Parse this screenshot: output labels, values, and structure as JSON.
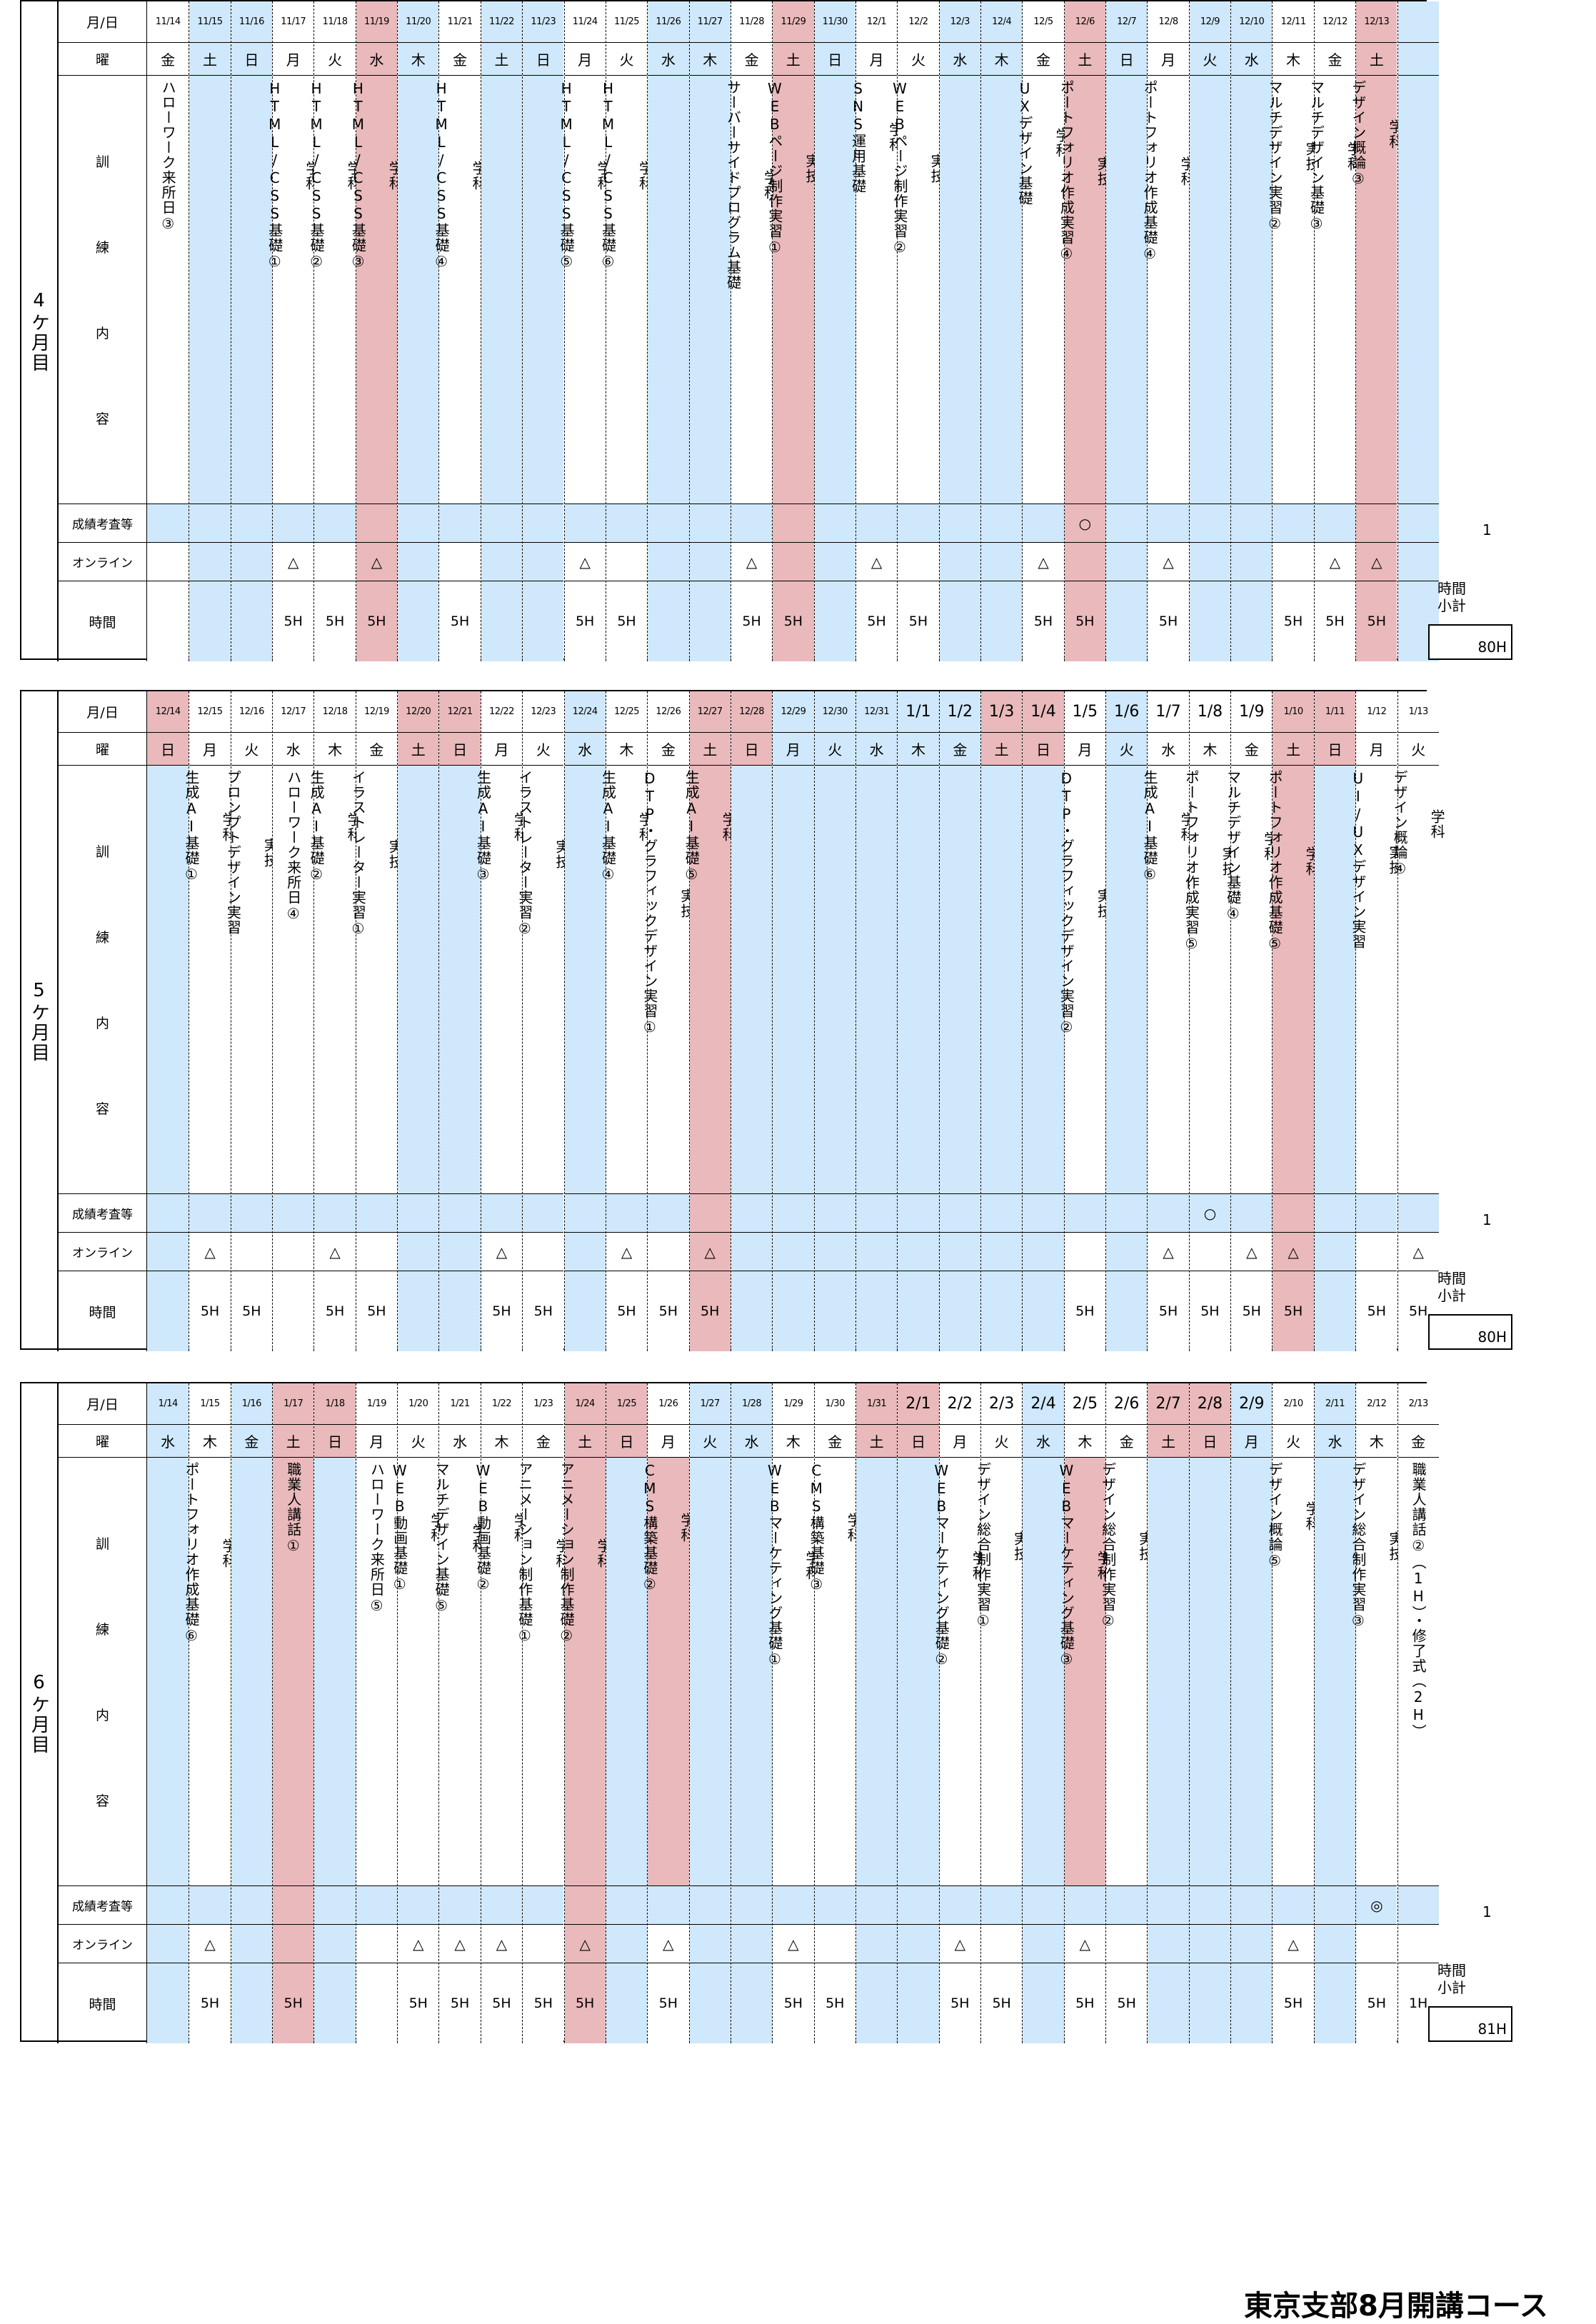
{
  "headers": {
    "date": "月/日",
    "weekday": "曜",
    "training": [
      "訓",
      "練",
      "内",
      "容"
    ],
    "exam": "成績考査等",
    "online": "オンライン",
    "time": "時間",
    "subtotal": "時間\n小計"
  },
  "footer": "東京支部8月開講コース",
  "months": [
    {
      "label": "4ケ月目",
      "note": "1",
      "subtotal": "80H",
      "days": [
        {
          "d": "11/14",
          "w": "金",
          "c": "ハローワーク来所日③",
          "e": "",
          "o": "",
          "h": "",
          "bg": "white"
        },
        {
          "d": "11/15",
          "w": "土",
          "c": "",
          "e": "",
          "o": "",
          "h": "",
          "bg": "blue"
        },
        {
          "d": "11/16",
          "w": "日",
          "c": "",
          "e": "",
          "o": "",
          "h": "",
          "bg": "blue"
        },
        {
          "d": "11/17",
          "w": "月",
          "c": "学科\n\nHTML/CSS基礎①",
          "e": "",
          "o": "△",
          "h": "5H",
          "bg": "white"
        },
        {
          "d": "11/18",
          "w": "火",
          "c": "学科\n\nHTML/CSS基礎②",
          "e": "",
          "o": "",
          "h": "5H",
          "bg": "white"
        },
        {
          "d": "11/19",
          "w": "水",
          "c": "学科\n\nHTML/CSS基礎③",
          "e": "",
          "o": "△",
          "h": "5H",
          "bg": "pink"
        },
        {
          "d": "11/20",
          "w": "木",
          "c": "",
          "e": "",
          "o": "",
          "h": "",
          "bg": "blue"
        },
        {
          "d": "11/21",
          "w": "金",
          "c": "学科\n\nHTML/CSS基礎④",
          "e": "",
          "o": "",
          "h": "5H",
          "bg": "white"
        },
        {
          "d": "11/22",
          "w": "土",
          "c": "",
          "e": "",
          "o": "",
          "h": "",
          "bg": "blue"
        },
        {
          "d": "11/23",
          "w": "日",
          "c": "",
          "e": "",
          "o": "",
          "h": "",
          "bg": "blue"
        },
        {
          "d": "11/24",
          "w": "月",
          "c": "学科\n\nHTML/CSS基礎⑤",
          "e": "",
          "o": "△",
          "h": "5H",
          "bg": "white"
        },
        {
          "d": "11/25",
          "w": "火",
          "c": "学科\n\nHTML/CSS基礎⑥",
          "e": "",
          "o": "",
          "h": "5H",
          "bg": "white"
        },
        {
          "d": "11/26",
          "w": "水",
          "c": "",
          "e": "",
          "o": "",
          "h": "",
          "bg": "blue"
        },
        {
          "d": "11/27",
          "w": "木",
          "c": "",
          "e": "",
          "o": "",
          "h": "",
          "bg": "blue"
        },
        {
          "d": "11/28",
          "w": "金",
          "c": "学科\n\nサーバーサイドプログラム基礎",
          "e": "",
          "o": "△",
          "h": "5H",
          "bg": "white"
        },
        {
          "d": "11/29",
          "w": "土",
          "c": "実技\n\nWEBページ制作実習①",
          "e": "",
          "o": "",
          "h": "5H",
          "bg": "pink"
        },
        {
          "d": "11/30",
          "w": "日",
          "c": "",
          "e": "",
          "o": "",
          "h": "",
          "bg": "blue"
        },
        {
          "d": "12/1",
          "w": "月",
          "c": "学科\n\nSNS運用基礎",
          "e": "",
          "o": "△",
          "h": "5H",
          "bg": "white"
        },
        {
          "d": "12/2",
          "w": "火",
          "c": "実技\n\nWEBページ制作実習②",
          "e": "",
          "o": "",
          "h": "5H",
          "bg": "white"
        },
        {
          "d": "12/3",
          "w": "水",
          "c": "",
          "e": "",
          "o": "",
          "h": "",
          "bg": "blue"
        },
        {
          "d": "12/4",
          "w": "木",
          "c": "",
          "e": "",
          "o": "",
          "h": "",
          "bg": "blue"
        },
        {
          "d": "12/5",
          "w": "金",
          "c": "学科\n\nUXデザイン基礎",
          "e": "",
          "o": "△",
          "h": "5H",
          "bg": "white"
        },
        {
          "d": "12/6",
          "w": "土",
          "c": "実技\n\nポートフォリオ作成実習④",
          "e": "○",
          "o": "",
          "h": "5H",
          "bg": "pink"
        },
        {
          "d": "12/7",
          "w": "日",
          "c": "",
          "e": "",
          "o": "",
          "h": "",
          "bg": "blue"
        },
        {
          "d": "12/8",
          "w": "月",
          "c": "学科\n\nポートフォリオ作成基礎④",
          "e": "",
          "o": "△",
          "h": "5H",
          "bg": "white"
        },
        {
          "d": "12/9",
          "w": "火",
          "c": "",
          "e": "",
          "o": "",
          "h": "",
          "bg": "blue"
        },
        {
          "d": "12/10",
          "w": "水",
          "c": "",
          "e": "",
          "o": "",
          "h": "",
          "bg": "blue"
        },
        {
          "d": "12/11",
          "w": "木",
          "c": "実技\n\nマルチデザイン実習②",
          "e": "",
          "o": "",
          "h": "5H",
          "bg": "white"
        },
        {
          "d": "12/12",
          "w": "金",
          "c": "学科\n\nマルチデザイン基礎③",
          "e": "",
          "o": "△",
          "h": "5H",
          "bg": "white"
        },
        {
          "d": "12/13",
          "w": "土",
          "c": "学科\n\nデザイン概論③",
          "e": "",
          "o": "△",
          "h": "5H",
          "bg": "pink"
        },
        {
          "d": "",
          "w": "",
          "c": "",
          "e": "",
          "o": "",
          "h": "",
          "bg": "blue"
        }
      ]
    },
    {
      "label": "5ケ月目",
      "note": "1",
      "subtotal": "80H",
      "days": [
        {
          "d": "12/14",
          "w": "日",
          "c": "",
          "e": "",
          "o": "",
          "h": "",
          "bg": "blue",
          "hd": "pink"
        },
        {
          "d": "12/15",
          "w": "月",
          "c": "学科\n\n生成AI基礎①",
          "e": "",
          "o": "△",
          "h": "5H",
          "bg": "white"
        },
        {
          "d": "12/16",
          "w": "火",
          "c": "実技\n\nプロンプトデザイン実習",
          "e": "",
          "o": "",
          "h": "5H",
          "bg": "white"
        },
        {
          "d": "12/17",
          "w": "水",
          "c": "ハローワーク来所日④",
          "e": "",
          "o": "",
          "h": "",
          "bg": "white"
        },
        {
          "d": "12/18",
          "w": "木",
          "c": "学科\n\n生成AI基礎②",
          "e": "",
          "o": "△",
          "h": "5H",
          "bg": "white"
        },
        {
          "d": "12/19",
          "w": "金",
          "c": "実技\n\nイラストレーター実習①",
          "e": "",
          "o": "",
          "h": "5H",
          "bg": "white"
        },
        {
          "d": "12/20",
          "w": "土",
          "c": "",
          "e": "",
          "o": "",
          "h": "",
          "bg": "blue",
          "hd": "pink"
        },
        {
          "d": "12/21",
          "w": "日",
          "c": "",
          "e": "",
          "o": "",
          "h": "",
          "bg": "blue",
          "hd": "pink"
        },
        {
          "d": "12/22",
          "w": "月",
          "c": "学科\n\n生成AI基礎③",
          "e": "",
          "o": "△",
          "h": "5H",
          "bg": "white"
        },
        {
          "d": "12/23",
          "w": "火",
          "c": "実技\n\nイラストレーター実習②",
          "e": "",
          "o": "",
          "h": "5H",
          "bg": "white"
        },
        {
          "d": "12/24",
          "w": "水",
          "c": "",
          "e": "",
          "o": "",
          "h": "",
          "bg": "blue"
        },
        {
          "d": "12/25",
          "w": "木",
          "c": "学科\n\n生成AI基礎④",
          "e": "",
          "o": "△",
          "h": "5H",
          "bg": "white"
        },
        {
          "d": "12/26",
          "w": "金",
          "c": "実技\n\nDTP・グラフィックデザイン実習①",
          "e": "",
          "o": "",
          "h": "5H",
          "bg": "white"
        },
        {
          "d": "12/27",
          "w": "土",
          "c": "学科\n\n生成AI基礎⑤",
          "e": "",
          "o": "△",
          "h": "5H",
          "bg": "pink"
        },
        {
          "d": "12/28",
          "w": "日",
          "c": "",
          "e": "",
          "o": "",
          "h": "",
          "bg": "blue",
          "hd": "pink"
        },
        {
          "d": "12/29",
          "w": "月",
          "c": "",
          "e": "",
          "o": "",
          "h": "",
          "bg": "blue"
        },
        {
          "d": "12/30",
          "w": "火",
          "c": "",
          "e": "",
          "o": "",
          "h": "",
          "bg": "blue"
        },
        {
          "d": "12/31",
          "w": "水",
          "c": "",
          "e": "",
          "o": "",
          "h": "",
          "bg": "blue"
        },
        {
          "d": "1/1",
          "w": "木",
          "c": "",
          "e": "",
          "o": "",
          "h": "",
          "bg": "blue",
          "big": true
        },
        {
          "d": "1/2",
          "w": "金",
          "c": "",
          "e": "",
          "o": "",
          "h": "",
          "bg": "blue",
          "big": true
        },
        {
          "d": "1/3",
          "w": "土",
          "c": "",
          "e": "",
          "o": "",
          "h": "",
          "bg": "blue",
          "hd": "pink",
          "big": true
        },
        {
          "d": "1/4",
          "w": "日",
          "c": "",
          "e": "",
          "o": "",
          "h": "",
          "bg": "blue",
          "hd": "pink",
          "big": true
        },
        {
          "d": "1/5",
          "w": "月",
          "c": "実技\n\nDTP・グラフィックデザイン実習②",
          "e": "",
          "o": "",
          "h": "5H",
          "bg": "white",
          "big": true
        },
        {
          "d": "1/6",
          "w": "火",
          "c": "",
          "e": "",
          "o": "",
          "h": "",
          "bg": "blue",
          "big": true
        },
        {
          "d": "1/7",
          "w": "水",
          "c": "学科\n\n生成AI基礎⑥",
          "e": "",
          "o": "△",
          "h": "5H",
          "bg": "white",
          "big": true
        },
        {
          "d": "1/8",
          "w": "木",
          "c": "実技\n\nポートフォリオ作成実習⑤",
          "e": "○",
          "o": "",
          "h": "5H",
          "bg": "white",
          "big": true
        },
        {
          "d": "1/9",
          "w": "金",
          "c": "学科\n\nマルチデザイン基礎④",
          "e": "",
          "o": "△",
          "h": "5H",
          "bg": "white",
          "big": true
        },
        {
          "d": "1/10",
          "w": "土",
          "c": "学科\n\nポートフォリオ作成基礎⑤",
          "e": "",
          "o": "△",
          "h": "5H",
          "bg": "pink"
        },
        {
          "d": "1/11",
          "w": "日",
          "c": "",
          "e": "",
          "o": "",
          "h": "",
          "bg": "blue",
          "hd": "pink"
        },
        {
          "d": "1/12",
          "w": "月",
          "c": "実技\n\nUI/UXデザイン実習",
          "e": "",
          "o": "",
          "h": "5H",
          "bg": "white"
        },
        {
          "d": "1/13",
          "w": "火",
          "c": "学科\n\nデザイン概論④",
          "e": "",
          "o": "△",
          "h": "5H",
          "bg": "white"
        }
      ]
    },
    {
      "label": "6ケ月目",
      "note": "1",
      "subtotal": "81H",
      "days": [
        {
          "d": "1/14",
          "w": "水",
          "c": "",
          "e": "",
          "o": "",
          "h": "",
          "bg": "blue"
        },
        {
          "d": "1/15",
          "w": "木",
          "c": "学科\n\nポートフォリオ作成基礎⑥",
          "e": "",
          "o": "△",
          "h": "5H",
          "bg": "white"
        },
        {
          "d": "1/16",
          "w": "金",
          "c": "",
          "e": "",
          "o": "",
          "h": "",
          "bg": "blue"
        },
        {
          "d": "1/17",
          "w": "土",
          "c": "職業人講話①",
          "e": "",
          "o": "",
          "h": "5H",
          "bg": "pink"
        },
        {
          "d": "1/18",
          "w": "日",
          "c": "",
          "e": "",
          "o": "",
          "h": "",
          "bg": "blue",
          "hd": "pink"
        },
        {
          "d": "1/19",
          "w": "月",
          "c": "ハローワーク来所日⑤",
          "e": "",
          "o": "",
          "h": "",
          "bg": "white"
        },
        {
          "d": "1/20",
          "w": "火",
          "c": "学科\n\nWEB動画基礎①",
          "e": "",
          "o": "△",
          "h": "5H",
          "bg": "white"
        },
        {
          "d": "1/21",
          "w": "水",
          "c": "学科\n\nマルチデザイン基礎⑤",
          "e": "",
          "o": "△",
          "h": "5H",
          "bg": "white"
        },
        {
          "d": "1/22",
          "w": "木",
          "c": "学科\n\nWEB動画基礎②",
          "e": "",
          "o": "△",
          "h": "5H",
          "bg": "white"
        },
        {
          "d": "1/23",
          "w": "金",
          "c": "学科\n\nアニメーション制作基礎①",
          "e": "",
          "o": "",
          "h": "5H",
          "bg": "white"
        },
        {
          "d": "1/24",
          "w": "土",
          "c": "学科\n\nアニメーション制作基礎②",
          "e": "",
          "o": "△",
          "h": "5H",
          "bg": "pink"
        },
        {
          "d": "1/25",
          "w": "日",
          "c": "",
          "e": "",
          "o": "",
          "h": "",
          "bg": "blue",
          "hd": "pink"
        },
        {
          "d": "1/26",
          "w": "月",
          "c": "学科\n\nCMS構築基礎②",
          "e": "",
          "o": "△",
          "h": "5H",
          "bg": "white",
          "cpink": true
        },
        {
          "d": "1/27",
          "w": "火",
          "c": "",
          "e": "",
          "o": "",
          "h": "",
          "bg": "blue"
        },
        {
          "d": "1/28",
          "w": "水",
          "c": "",
          "e": "",
          "o": "",
          "h": "",
          "bg": "blue"
        },
        {
          "d": "1/29",
          "w": "木",
          "c": "学科\n\nWEBマーケティング基礎①",
          "e": "",
          "o": "△",
          "h": "5H",
          "bg": "white"
        },
        {
          "d": "1/30",
          "w": "金",
          "c": "学科\n\nCMS構築基礎③",
          "e": "",
          "o": "",
          "h": "5H",
          "bg": "white"
        },
        {
          "d": "1/31",
          "w": "土",
          "c": "",
          "e": "",
          "o": "",
          "h": "",
          "bg": "blue",
          "hd": "pink"
        },
        {
          "d": "2/1",
          "w": "日",
          "c": "",
          "e": "",
          "o": "",
          "h": "",
          "bg": "blue",
          "hd": "pink",
          "big": true
        },
        {
          "d": "2/2",
          "w": "月",
          "c": "学科\n\nWEBマーケティング基礎②",
          "e": "",
          "o": "△",
          "h": "5H",
          "bg": "white",
          "big": true
        },
        {
          "d": "2/3",
          "w": "火",
          "c": "実技\n\nデザイン総合制作実習①",
          "e": "",
          "o": "",
          "h": "5H",
          "bg": "white",
          "big": true
        },
        {
          "d": "2/4",
          "w": "水",
          "c": "",
          "e": "",
          "o": "",
          "h": "",
          "bg": "blue",
          "big": true
        },
        {
          "d": "2/5",
          "w": "木",
          "c": "学科\n\nWEBマーケティング基礎③",
          "e": "",
          "o": "△",
          "h": "5H",
          "bg": "white",
          "cpink": true,
          "big": true
        },
        {
          "d": "2/6",
          "w": "金",
          "c": "実技\n\nデザイン総合制作実習②",
          "e": "",
          "o": "",
          "h": "5H",
          "bg": "white",
          "big": true
        },
        {
          "d": "2/7",
          "w": "土",
          "c": "",
          "e": "",
          "o": "",
          "h": "",
          "bg": "blue",
          "hd": "pink",
          "big": true
        },
        {
          "d": "2/8",
          "w": "日",
          "c": "",
          "e": "",
          "o": "",
          "h": "",
          "bg": "blue",
          "hd": "pink",
          "big": true
        },
        {
          "d": "2/9",
          "w": "月",
          "c": "",
          "e": "",
          "o": "",
          "h": "",
          "bg": "blue",
          "big": true
        },
        {
          "d": "2/10",
          "w": "火",
          "c": "学科\n\nデザイン概論⑤",
          "e": "",
          "o": "△",
          "h": "5H",
          "bg": "white"
        },
        {
          "d": "2/11",
          "w": "水",
          "c": "",
          "e": "",
          "o": "",
          "h": "",
          "bg": "blue"
        },
        {
          "d": "2/12",
          "w": "木",
          "c": "実技\n\nデザイン総合制作実習③",
          "e": "◎",
          "o": "",
          "h": "5H",
          "bg": "white"
        },
        {
          "d": "2/13",
          "w": "金",
          "c": "職業人講話②（1H）・修了式（2H）",
          "e": "",
          "o": "",
          "h": "1H",
          "bg": "white"
        }
      ]
    }
  ]
}
